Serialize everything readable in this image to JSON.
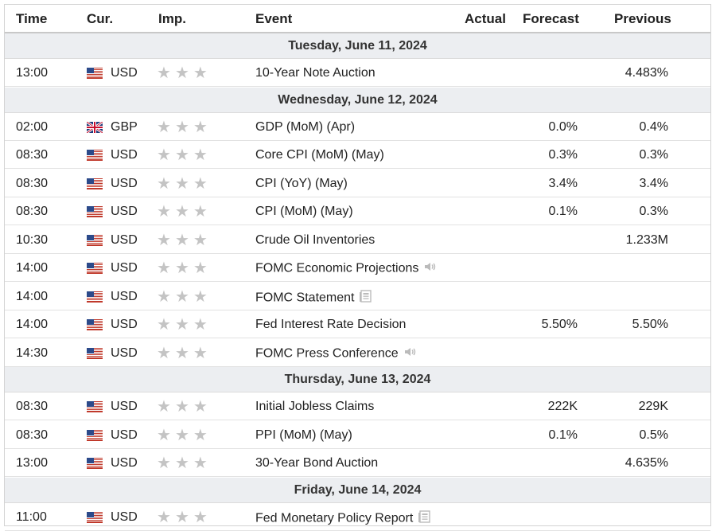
{
  "header": {
    "time": "Time",
    "cur": "Cur.",
    "imp": "Imp.",
    "event": "Event",
    "actual": "Actual",
    "forecast": "Forecast",
    "previous": "Previous"
  },
  "days": [
    {
      "label": "Tuesday, June 11, 2024",
      "rows": [
        {
          "time": "13:00",
          "cur": "USD",
          "flag": "us-flag-icon",
          "event": "10-Year Note Auction",
          "icon": "",
          "actual": "",
          "forecast": "",
          "previous": "4.483%"
        }
      ]
    },
    {
      "label": "Wednesday, June 12, 2024",
      "rows": [
        {
          "time": "02:00",
          "cur": "GBP",
          "flag": "uk-flag-icon",
          "event": "GDP (MoM) (Apr)",
          "icon": "",
          "actual": "",
          "forecast": "0.0%",
          "previous": "0.4%"
        },
        {
          "time": "08:30",
          "cur": "USD",
          "flag": "us-flag-icon",
          "event": "Core CPI (MoM) (May)",
          "icon": "",
          "actual": "",
          "forecast": "0.3%",
          "previous": "0.3%"
        },
        {
          "time": "08:30",
          "cur": "USD",
          "flag": "us-flag-icon",
          "event": "CPI (YoY) (May)",
          "icon": "",
          "actual": "",
          "forecast": "3.4%",
          "previous": "3.4%"
        },
        {
          "time": "08:30",
          "cur": "USD",
          "flag": "us-flag-icon",
          "event": "CPI (MoM) (May)",
          "icon": "",
          "actual": "",
          "forecast": "0.1%",
          "previous": "0.3%"
        },
        {
          "time": "10:30",
          "cur": "USD",
          "flag": "us-flag-icon",
          "event": "Crude Oil Inventories",
          "icon": "",
          "actual": "",
          "forecast": "",
          "previous": "1.233M"
        },
        {
          "time": "14:00",
          "cur": "USD",
          "flag": "us-flag-icon",
          "event": "FOMC Economic Projections",
          "icon": "speaker-icon",
          "actual": "",
          "forecast": "",
          "previous": ""
        },
        {
          "time": "14:00",
          "cur": "USD",
          "flag": "us-flag-icon",
          "event": "FOMC Statement",
          "icon": "document-icon",
          "actual": "",
          "forecast": "",
          "previous": ""
        },
        {
          "time": "14:00",
          "cur": "USD",
          "flag": "us-flag-icon",
          "event": "Fed Interest Rate Decision",
          "icon": "",
          "actual": "",
          "forecast": "5.50%",
          "previous": "5.50%"
        },
        {
          "time": "14:30",
          "cur": "USD",
          "flag": "us-flag-icon",
          "event": "FOMC Press Conference",
          "icon": "speaker-icon",
          "actual": "",
          "forecast": "",
          "previous": ""
        }
      ]
    },
    {
      "label": "Thursday, June 13, 2024",
      "rows": [
        {
          "time": "08:30",
          "cur": "USD",
          "flag": "us-flag-icon",
          "event": "Initial Jobless Claims",
          "icon": "",
          "actual": "",
          "forecast": "222K",
          "previous": "229K"
        },
        {
          "time": "08:30",
          "cur": "USD",
          "flag": "us-flag-icon",
          "event": "PPI (MoM) (May)",
          "icon": "",
          "actual": "",
          "forecast": "0.1%",
          "previous": "0.5%"
        },
        {
          "time": "13:00",
          "cur": "USD",
          "flag": "us-flag-icon",
          "event": "30-Year Bond Auction",
          "icon": "",
          "actual": "",
          "forecast": "",
          "previous": "4.635%"
        }
      ]
    },
    {
      "label": "Friday, June 14, 2024",
      "rows": [
        {
          "time": "11:00",
          "cur": "USD",
          "flag": "us-flag-icon",
          "event": "Fed Monetary Policy Report",
          "icon": "document-icon",
          "actual": "",
          "forecast": "",
          "previous": ""
        }
      ]
    }
  ],
  "importance_stars": 3
}
